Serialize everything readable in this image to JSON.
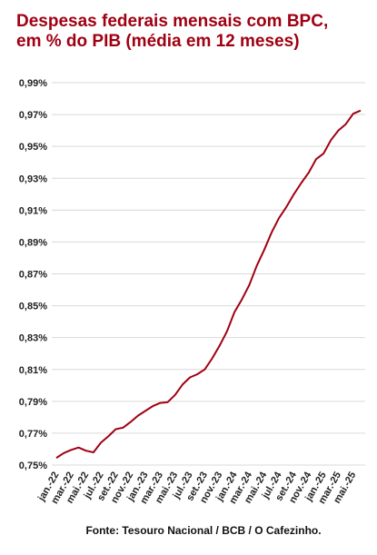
{
  "chart_data": {
    "type": "line",
    "title": [
      "Despesas federais mensais com BPC,",
      "em % do PIB (média em 12 meses)"
    ],
    "source": "Fonte: Tesouro Nacional / BCB / O Cafezinho.",
    "categories": [
      "jan.-22",
      null,
      "mar.-22",
      null,
      "mai.-22",
      null,
      "jul.-22",
      null,
      "set.-22",
      null,
      "nov.-22",
      null,
      "jan.-23",
      null,
      "mar.-23",
      null,
      "mai.-23",
      null,
      "jul.-23",
      null,
      "set.-23",
      null,
      "nov.-23",
      null,
      "jan.-24",
      null,
      "mar.-24",
      null,
      "mai.-24",
      null,
      "jul.-24",
      null,
      "set.-24",
      null,
      "nov.-24",
      null,
      "jan.-25",
      null,
      "mar.-25",
      null,
      "mai.-25",
      null
    ],
    "series": [
      {
        "color": "#a00012",
        "values": [
          0.7545,
          0.7575,
          0.7595,
          0.761,
          0.759,
          0.758,
          0.764,
          0.768,
          0.7725,
          0.7735,
          0.777,
          0.781,
          0.784,
          0.787,
          0.789,
          0.7895,
          0.794,
          0.8005,
          0.805,
          0.807,
          0.81,
          0.817,
          0.825,
          0.834,
          0.846,
          0.854,
          0.863,
          0.875,
          0.885,
          0.896,
          0.905,
          0.912,
          0.92,
          0.927,
          0.9335,
          0.942,
          0.9455,
          0.954,
          0.96,
          0.964,
          0.9705,
          0.9725
        ]
      }
    ],
    "ylim": [
      0.75,
      0.99
    ],
    "yticks": [
      {
        "value": 0.75,
        "label": "0,75%"
      },
      {
        "value": 0.77,
        "label": "0,77%"
      },
      {
        "value": 0.79,
        "label": "0,79%"
      },
      {
        "value": 0.81,
        "label": "0,81%"
      },
      {
        "value": 0.83,
        "label": "0,83%"
      },
      {
        "value": 0.85,
        "label": "0,85%"
      },
      {
        "value": 0.87,
        "label": "0,87%"
      },
      {
        "value": 0.89,
        "label": "0,89%"
      },
      {
        "value": 0.91,
        "label": "0,91%"
      },
      {
        "value": 0.93,
        "label": "0,93%"
      },
      {
        "value": 0.95,
        "label": "0,95%"
      },
      {
        "value": 0.97,
        "label": "0,97%"
      },
      {
        "value": 0.99,
        "label": "0,99%"
      }
    ],
    "grid": true
  }
}
